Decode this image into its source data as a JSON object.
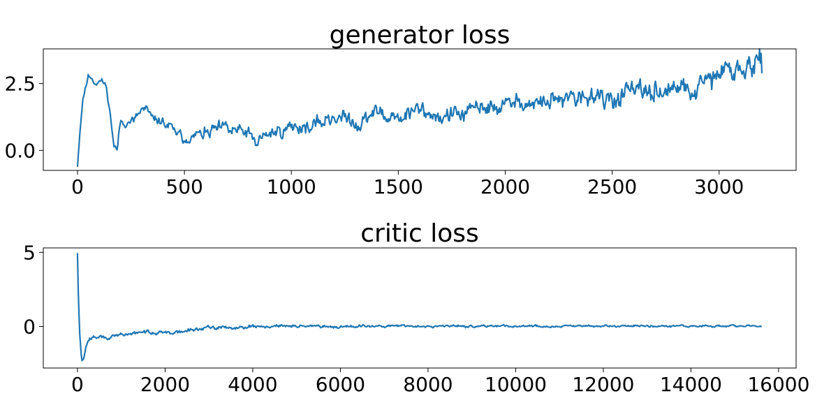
{
  "chart_data": [
    {
      "type": "line",
      "title": "generator loss",
      "xlabel": "",
      "ylabel": "",
      "xlim": [
        -160,
        3360
      ],
      "ylim": [
        -0.75,
        3.8
      ],
      "xticks": [
        0,
        500,
        1000,
        1500,
        2000,
        2500,
        3000
      ],
      "xtick_labels": [
        "0",
        "500",
        "1000",
        "1500",
        "2000",
        "2500",
        "3000"
      ],
      "yticks": [
        0.0,
        2.5
      ],
      "ytick_labels": [
        "0.0",
        "2.5"
      ],
      "grid": false,
      "series": [
        {
          "color": "#1f77b4",
          "trend_x": [
            0,
            10,
            25,
            50,
            80,
            100,
            130,
            150,
            170,
            185,
            200,
            260,
            320,
            350,
            400,
            450,
            500,
            600,
            700,
            800,
            830,
            900,
            1000,
            1100,
            1200,
            1300,
            1400,
            1500,
            1600,
            1700,
            1800,
            1900,
            2000,
            2100,
            2200,
            2300,
            2400,
            2500,
            2600,
            2700,
            2800,
            2900,
            3000,
            3100,
            3150,
            3200
          ],
          "trend_y": [
            -0.55,
            0.6,
            1.9,
            2.85,
            2.55,
            2.6,
            2.5,
            1.6,
            0.2,
            0.0,
            1.05,
            1.15,
            1.6,
            1.2,
            1.05,
            0.65,
            0.5,
            0.65,
            0.7,
            0.65,
            0.25,
            0.65,
            0.95,
            0.85,
            1.25,
            1.05,
            1.4,
            1.2,
            1.5,
            1.25,
            1.35,
            1.55,
            1.65,
            1.75,
            1.8,
            1.9,
            1.95,
            1.95,
            2.15,
            2.2,
            2.25,
            2.35,
            2.8,
            3.0,
            3.1,
            3.1
          ],
          "noise_amplitude": [
            0.1,
            0.2,
            0.28,
            0.3,
            0.32,
            0.34,
            0.38,
            0.42,
            0.45,
            0.48,
            0.55
          ],
          "seed": 11
        }
      ]
    },
    {
      "type": "line",
      "title": "critic loss",
      "xlabel": "",
      "ylabel": "",
      "xlim": [
        -780,
        16400
      ],
      "ylim": [
        -2.8,
        5.3
      ],
      "xticks": [
        0,
        2000,
        4000,
        6000,
        8000,
        10000,
        12000,
        14000,
        16000
      ],
      "xtick_labels": [
        "0",
        "2000",
        "4000",
        "6000",
        "8000",
        "10000",
        "12000",
        "14000",
        "16000"
      ],
      "yticks": [
        0,
        5
      ],
      "ytick_labels": [
        "0",
        "5"
      ],
      "grid": false,
      "series": [
        {
          "color": "#1f77b4",
          "trend_x": [
            0,
            20,
            50,
            80,
            110,
            150,
            200,
            300,
            500,
            800,
            1000,
            1300,
            1600,
            2000,
            2300,
            2600,
            2900,
            3300,
            4000,
            5000,
            6000,
            7000,
            8000,
            9000,
            10000,
            11000,
            12000,
            13000,
            14000,
            15000,
            15600
          ],
          "trend_y": [
            4.9,
            2.0,
            -0.5,
            -1.8,
            -2.3,
            -2.1,
            -1.3,
            -0.8,
            -0.75,
            -0.7,
            -0.55,
            -0.45,
            -0.35,
            -0.4,
            -0.45,
            -0.25,
            -0.1,
            -0.05,
            0.0,
            0.02,
            0.02,
            0.02,
            0.02,
            0.02,
            0.02,
            0.02,
            0.02,
            0.02,
            0.02,
            0.02,
            0.02
          ],
          "noise_amplitude": [
            0.16,
            0.14,
            0.12,
            0.1,
            0.09,
            0.08,
            0.08,
            0.08
          ],
          "seed": 29
        }
      ]
    }
  ]
}
